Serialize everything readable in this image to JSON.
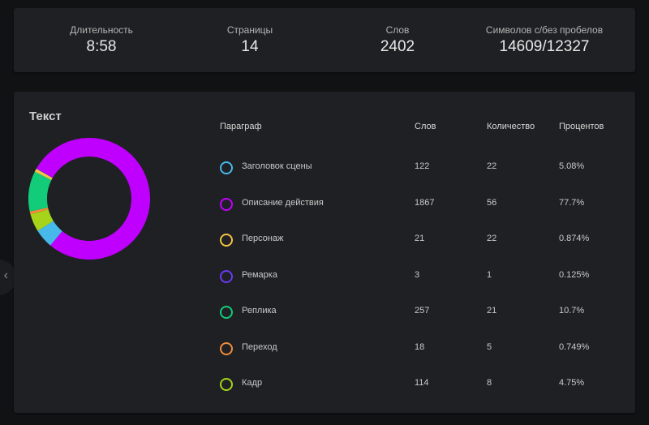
{
  "stats": [
    {
      "label": "Длительность",
      "value": "8:58"
    },
    {
      "label": "Страницы",
      "value": "14"
    },
    {
      "label": "Слов",
      "value": "2402"
    },
    {
      "label": "Символов с/без пробелов",
      "value": "14609/12327"
    }
  ],
  "text_panel": {
    "title": "Текст",
    "headers": {
      "paragraph": "Параграф",
      "words": "Слов",
      "count": "Количество",
      "percent": "Процентов"
    },
    "rows": [
      {
        "name": "Заголовок сцены",
        "words": "122",
        "count": "22",
        "percent": "5.08%",
        "color": "#47b8ea"
      },
      {
        "name": "Описание действия",
        "words": "1867",
        "count": "56",
        "percent": "77.7%",
        "color": "#c000ff"
      },
      {
        "name": "Персонаж",
        "words": "21",
        "count": "22",
        "percent": "0.874%",
        "color": "#f5c343"
      },
      {
        "name": "Ремарка",
        "words": "3",
        "count": "1",
        "percent": "0.125%",
        "color": "#6a3af5"
      },
      {
        "name": "Реплика",
        "words": "257",
        "count": "21",
        "percent": "10.7%",
        "color": "#12cc7a"
      },
      {
        "name": "Переход",
        "words": "18",
        "count": "5",
        "percent": "0.749%",
        "color": "#f08c3a"
      },
      {
        "name": "Кадр",
        "words": "114",
        "count": "8",
        "percent": "4.75%",
        "color": "#a6d41a"
      }
    ]
  },
  "chart_data": {
    "type": "pie",
    "title": "Текст",
    "categories": [
      "Заголовок сцены",
      "Описание действия",
      "Персонаж",
      "Ремарка",
      "Реплика",
      "Переход",
      "Кадр"
    ],
    "values": [
      5.08,
      77.7,
      0.874,
      0.125,
      10.7,
      0.749,
      4.75
    ],
    "colors": [
      "#47b8ea",
      "#c000ff",
      "#f5c343",
      "#6a3af5",
      "#12cc7a",
      "#f08c3a",
      "#a6d41a"
    ],
    "order": [
      1,
      0,
      6,
      5,
      4,
      2,
      3
    ]
  },
  "nav": {
    "prev_icon": "‹"
  }
}
